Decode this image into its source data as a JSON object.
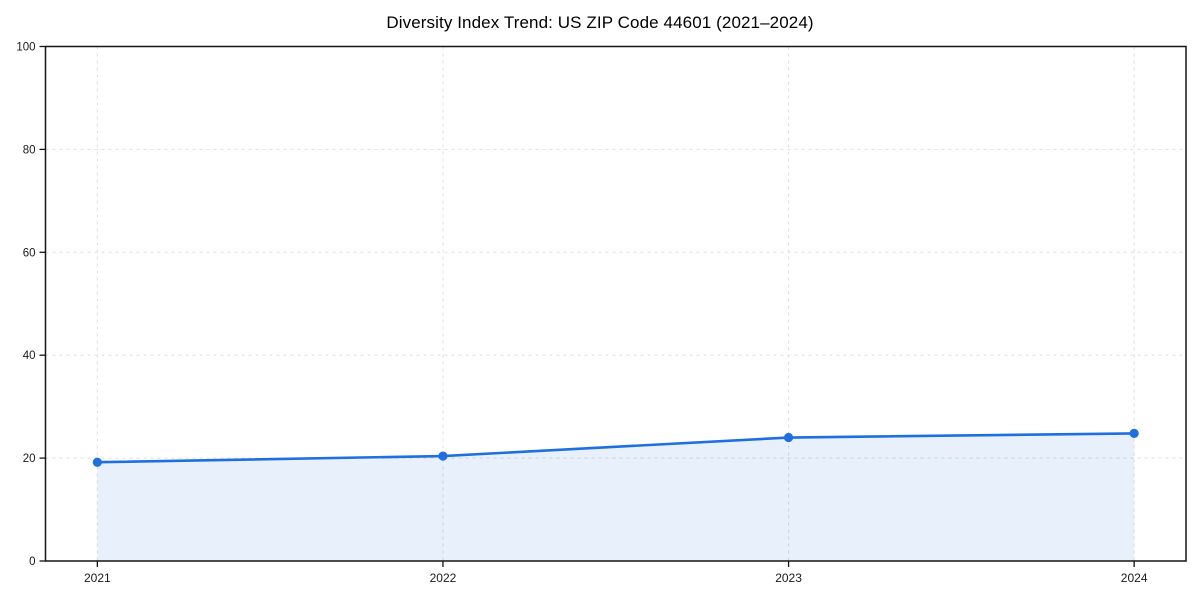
{
  "chart_data": {
    "type": "area",
    "title": "Diversity Index Trend: US ZIP Code 44601 (2021–2024)",
    "categories": [
      "2021",
      "2022",
      "2023",
      "2024"
    ],
    "series": [
      {
        "name": "Diversity Index",
        "values": [
          19.2,
          20.4,
          24.0,
          24.8
        ]
      }
    ],
    "xlabel": "",
    "ylabel": "",
    "ylim": [
      0,
      100
    ],
    "yticks": [
      0,
      20,
      40,
      60,
      80,
      100
    ],
    "grid": true,
    "legend_position": "none",
    "colors": {
      "line": "#1f6fde",
      "marker": "#1f6fde",
      "fill": "#1f6fde",
      "fill_opacity": 0.1,
      "grid": "#dedede",
      "spine": "#141414",
      "tick_label": "#1a1a1a"
    }
  }
}
